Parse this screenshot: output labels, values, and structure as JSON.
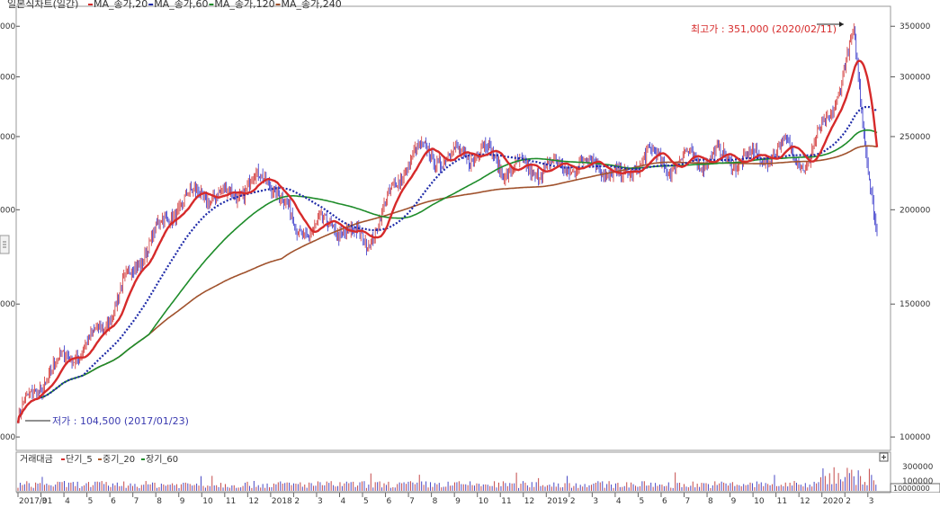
{
  "chart_data": [
    {
      "type": "candlestick",
      "title": "일본식차트(일간)",
      "legend_position": "top-left",
      "legend": [
        {
          "label": "MA_종가,20",
          "color": "#d62a2a"
        },
        {
          "label": "MA_종가,60",
          "color": "#1e2aa8"
        },
        {
          "label": "MA_종가,120",
          "color": "#1e8c2a"
        },
        {
          "label": "MA_종가,240",
          "color": "#a0522d"
        }
      ],
      "y_scale": "log",
      "ylim": [
        96000,
        372000
      ],
      "y_ticks": [
        100000,
        150000,
        200000,
        250000,
        300000,
        350000
      ],
      "y_tick_labels": [
        "100000",
        "150000",
        "200000",
        "250000",
        "300000",
        "350000"
      ],
      "left_axis_fragments": [
        "000",
        "000",
        "000",
        "000",
        "000",
        "000"
      ],
      "x_tick_labels": [
        "2017/01",
        "3",
        "4",
        "5",
        "6",
        "7",
        "8",
        "9",
        "10",
        "11",
        "12",
        "2018",
        "2",
        "3",
        "4",
        "5",
        "6",
        "7",
        "8",
        "9",
        "10",
        "11",
        "12",
        "2019",
        "2",
        "3",
        "4",
        "5",
        "6",
        "7",
        "8",
        "9",
        "10",
        "11",
        "12",
        "2020",
        "2",
        "3"
      ],
      "grid": false,
      "annotations": {
        "high": "최고가 : 351,000 (2020/02/11)",
        "low": "최저가 : 104,500 (2017/01/23)",
        "low_visible": "저가 : 104,500 (2017/01/23)",
        "high_color": "#d62a2a",
        "low_color": "#3a3ab0"
      },
      "series_anchor_points": [
        {
          "date": "2017/01",
          "close": 106000
        },
        {
          "date": "2017/02",
          "close": 114000
        },
        {
          "date": "2017/03",
          "close": 124000
        },
        {
          "date": "2017/04",
          "close": 134000
        },
        {
          "date": "2017/05",
          "close": 152000
        },
        {
          "date": "2017/06",
          "close": 170000
        },
        {
          "date": "2017/07",
          "close": 182000
        },
        {
          "date": "2017/08",
          "close": 198000
        },
        {
          "date": "2017/09",
          "close": 212000
        },
        {
          "date": "2017/10",
          "close": 216000
        },
        {
          "date": "2017/11",
          "close": 222000
        },
        {
          "date": "2017/12",
          "close": 214000
        },
        {
          "date": "2018/02",
          "close": 180000
        },
        {
          "date": "2018/03",
          "close": 190000
        },
        {
          "date": "2018/04",
          "close": 196000
        },
        {
          "date": "2018/05",
          "close": 186000
        },
        {
          "date": "2018/06",
          "close": 204000
        },
        {
          "date": "2018/07",
          "close": 230000
        },
        {
          "date": "2018/08",
          "close": 232000
        },
        {
          "date": "2018/09",
          "close": 242000
        },
        {
          "date": "2018/10",
          "close": 250000
        },
        {
          "date": "2018/11",
          "close": 226000
        },
        {
          "date": "2018/12",
          "close": 218000
        },
        {
          "date": "2019/01",
          "close": 222000
        },
        {
          "date": "2019/02",
          "close": 234000
        },
        {
          "date": "2019/03",
          "close": 240000
        },
        {
          "date": "2019/04",
          "close": 220000
        },
        {
          "date": "2019/05",
          "close": 230000
        },
        {
          "date": "2019/06",
          "close": 222000
        },
        {
          "date": "2019/07",
          "close": 236000
        },
        {
          "date": "2019/08",
          "close": 244000
        },
        {
          "date": "2019/09",
          "close": 238000
        },
        {
          "date": "2019/10",
          "close": 228000
        },
        {
          "date": "2019/11",
          "close": 234000
        },
        {
          "date": "2019/12",
          "close": 230000
        },
        {
          "date": "2020/01",
          "close": 280000
        },
        {
          "date": "2020/02",
          "close": 345000
        },
        {
          "date": "2020/03",
          "close": 182000
        }
      ]
    },
    {
      "type": "bar",
      "title": "거래대금",
      "legend": [
        {
          "label": "단기_5",
          "color": "#d62a2a"
        },
        {
          "label": "중기_20",
          "color": "#b05a2a"
        },
        {
          "label": "장기_60",
          "color": "#1e8c2a"
        }
      ],
      "y_tick_labels": [
        "300000",
        "100000"
      ],
      "unit_box": "10000000",
      "bar_colors": [
        "#c44a4a",
        "#4a4ac4"
      ]
    }
  ]
}
